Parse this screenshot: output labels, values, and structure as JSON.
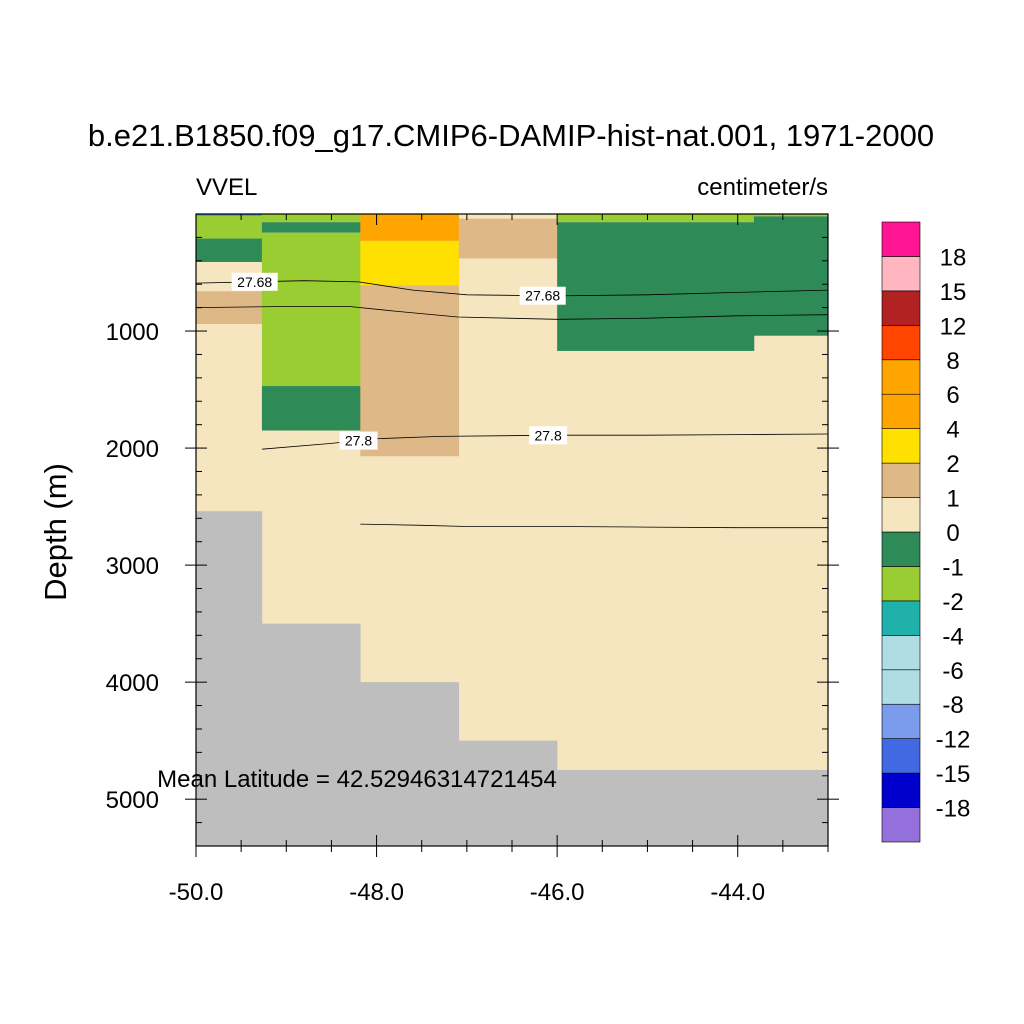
{
  "chart_data": {
    "type": "heatmap",
    "title": "b.e21.B1850.f09_g17.CMIP6-DAMIP-hist-nat.001, 1971-2000",
    "left_subtitle": "VVEL",
    "right_subtitle": "centimeter/s",
    "ylabel": "Depth (m)",
    "xlabel": "",
    "xlim": [
      -50.0,
      -43.0
    ],
    "ylim": [
      5400,
      0
    ],
    "y_reversed": true,
    "x_ticks": [
      "-50.0",
      "-48.0",
      "-46.0",
      "-44.0"
    ],
    "y_ticks": [
      "1000",
      "2000",
      "3000",
      "4000",
      "5000"
    ],
    "annotation": "Mean Latitude = 42.52946314721454",
    "background_color": "#f5e6bf",
    "land_color": "#bebebe",
    "columns": [
      {
        "x0": -50.0,
        "x1": -49.27,
        "bottom": 2540,
        "cells": [
          {
            "top": 0,
            "bottom": 15,
            "color": "#3a7dd6"
          },
          {
            "top": 15,
            "bottom": 210,
            "color": "#9acd32"
          },
          {
            "top": 210,
            "bottom": 410,
            "color": "#2e8b57"
          },
          {
            "top": 660,
            "bottom": 940,
            "color": "#deb887"
          }
        ]
      },
      {
        "x0": -49.27,
        "x1": -48.18,
        "bottom": 3500,
        "cells": [
          {
            "top": 0,
            "bottom": 70,
            "color": "#9acd32"
          },
          {
            "top": 70,
            "bottom": 160,
            "color": "#2e8b57"
          },
          {
            "top": 160,
            "bottom": 1470,
            "color": "#9acd32"
          },
          {
            "top": 1470,
            "bottom": 1850,
            "color": "#2e8b57"
          }
        ]
      },
      {
        "x0": -48.18,
        "x1": -47.09,
        "bottom": 4000,
        "cells": [
          {
            "top": 0,
            "bottom": 230,
            "color": "#ffa500"
          },
          {
            "top": 230,
            "bottom": 610,
            "color": "#ffe000"
          },
          {
            "top": 610,
            "bottom": 2070,
            "color": "#deb887"
          }
        ]
      },
      {
        "x0": -47.09,
        "x1": -46.0,
        "bottom": 4500,
        "cells": [
          {
            "top": 40,
            "bottom": 380,
            "color": "#deb887"
          }
        ]
      },
      {
        "x0": -46.0,
        "x1": -43.82,
        "bottom": 4750,
        "cells": [
          {
            "top": 0,
            "bottom": 70,
            "color": "#9acd32"
          },
          {
            "top": 70,
            "bottom": 1170,
            "color": "#2e8b57"
          }
        ]
      },
      {
        "x0": -43.82,
        "x1": -43.0,
        "bottom": 4750,
        "cells": [
          {
            "top": 0,
            "bottom": 20,
            "color": "#9acd32"
          },
          {
            "top": 20,
            "bottom": 1040,
            "color": "#2e8b57"
          }
        ]
      }
    ],
    "contours": [
      {
        "label": "27.68",
        "label_positions": [
          -49.35,
          -46.16
        ],
        "points": [
          [
            -50.0,
            590
          ],
          [
            -48.8,
            570
          ],
          [
            -48.2,
            580
          ],
          [
            -47.6,
            650
          ],
          [
            -47.0,
            690
          ],
          [
            -46.0,
            700
          ],
          [
            -45.0,
            690
          ],
          [
            -44.0,
            670
          ],
          [
            -43.0,
            650
          ]
        ]
      },
      {
        "label": "",
        "label_positions": [],
        "points": [
          [
            -50.0,
            800
          ],
          [
            -49.0,
            790
          ],
          [
            -48.3,
            790
          ],
          [
            -47.8,
            830
          ],
          [
            -47.1,
            880
          ],
          [
            -46.0,
            900
          ],
          [
            -45.0,
            890
          ],
          [
            -44.0,
            870
          ],
          [
            -43.0,
            860
          ]
        ]
      },
      {
        "label": "27.8",
        "label_positions": [
          -48.2,
          -46.1
        ],
        "points": [
          [
            -49.27,
            2010
          ],
          [
            -48.5,
            1960
          ],
          [
            -48.0,
            1920
          ],
          [
            -47.3,
            1900
          ],
          [
            -46.0,
            1890
          ],
          [
            -45.0,
            1890
          ],
          [
            -44.0,
            1885
          ],
          [
            -43.0,
            1880
          ]
        ]
      },
      {
        "label": "",
        "label_positions": [],
        "points": [
          [
            -48.18,
            2650
          ],
          [
            -47.5,
            2660
          ],
          [
            -47.0,
            2670
          ],
          [
            -46.0,
            2670
          ],
          [
            -45.0,
            2675
          ],
          [
            -44.0,
            2680
          ],
          [
            -43.0,
            2680
          ]
        ]
      }
    ],
    "colorbar": {
      "colors": [
        "#9370db",
        "#0000cd",
        "#4169e1",
        "#7b9bed",
        "#b0dde3",
        "#b0dde3",
        "#20b2aa",
        "#9acd32",
        "#2e8b57",
        "#f5e6bf",
        "#deb887",
        "#ffe000",
        "#ffa500",
        "#ffa500",
        "#ff4500",
        "#b22222",
        "#ffb6c1",
        "#ff1493"
      ],
      "labels": [
        "-18",
        "-15",
        "-12",
        "-8",
        "-6",
        "-4",
        "-2",
        "-1",
        "0",
        "1",
        "2",
        "4",
        "6",
        "8",
        "12",
        "15",
        "18"
      ]
    }
  }
}
